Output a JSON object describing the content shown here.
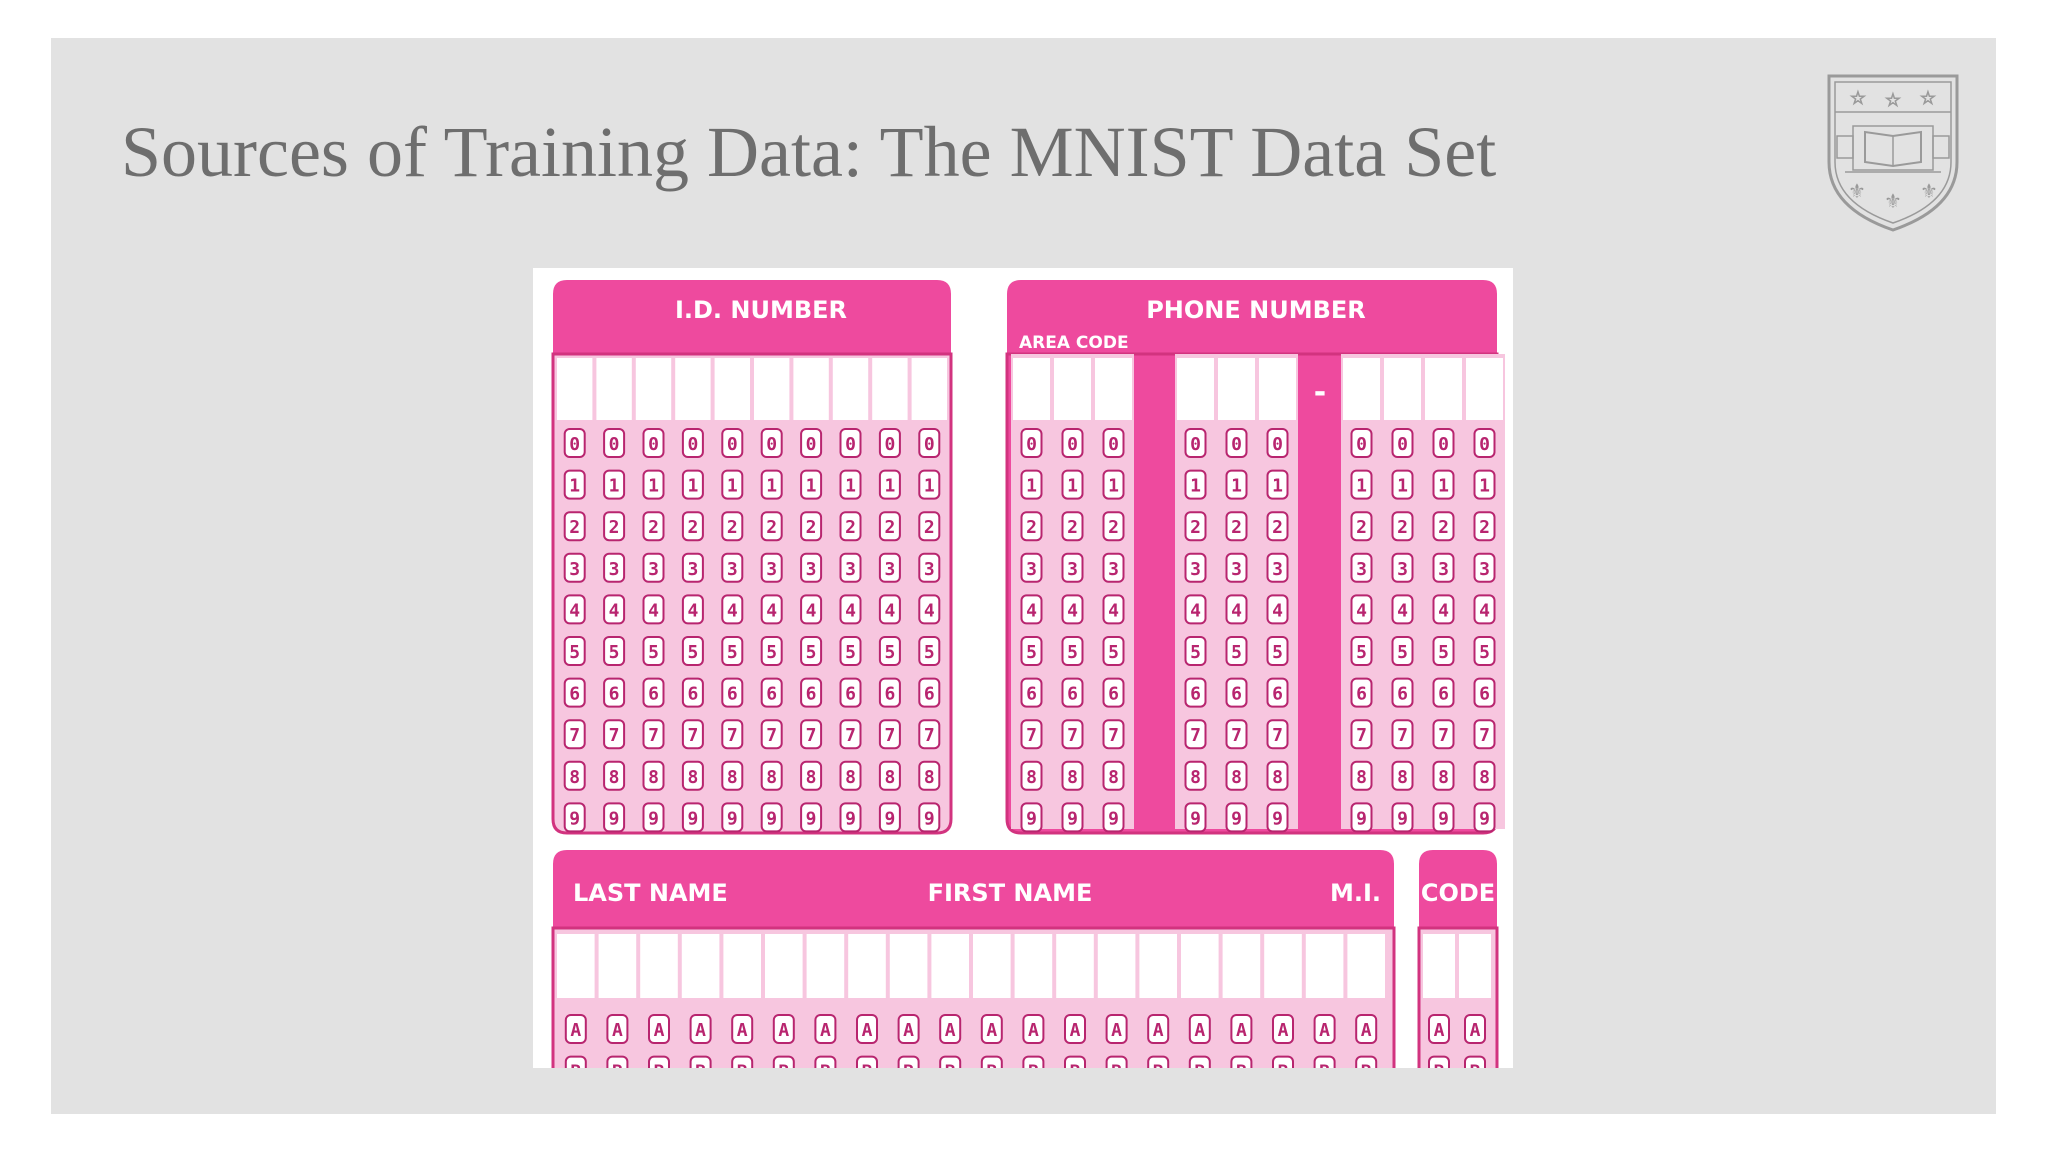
{
  "slide": {
    "title": "Sources of Training Data: The MNIST Data Set",
    "logo_icon": "university-shield-crest-icon"
  },
  "form": {
    "colors": {
      "accent": "#ee4a9e",
      "panel": "#f7c6df",
      "bubble_border": "#b8256f",
      "text": "#ffffff"
    },
    "id_number": {
      "label": "I.D. NUMBER",
      "columns": 10
    },
    "phone_number": {
      "label": "PHONE NUMBER",
      "area_code_label": "AREA CODE",
      "dash": "-",
      "groups": [
        3,
        3,
        4
      ]
    },
    "digits": [
      "0",
      "1",
      "2",
      "3",
      "4",
      "5",
      "6",
      "7",
      "8",
      "9"
    ],
    "name": {
      "last_label": "LAST NAME",
      "first_label": "FIRST NAME",
      "mi_label": "M.I.",
      "columns": 20
    },
    "code": {
      "label": "CODE",
      "columns": 2
    },
    "letters_visible": [
      "A",
      "B"
    ]
  }
}
